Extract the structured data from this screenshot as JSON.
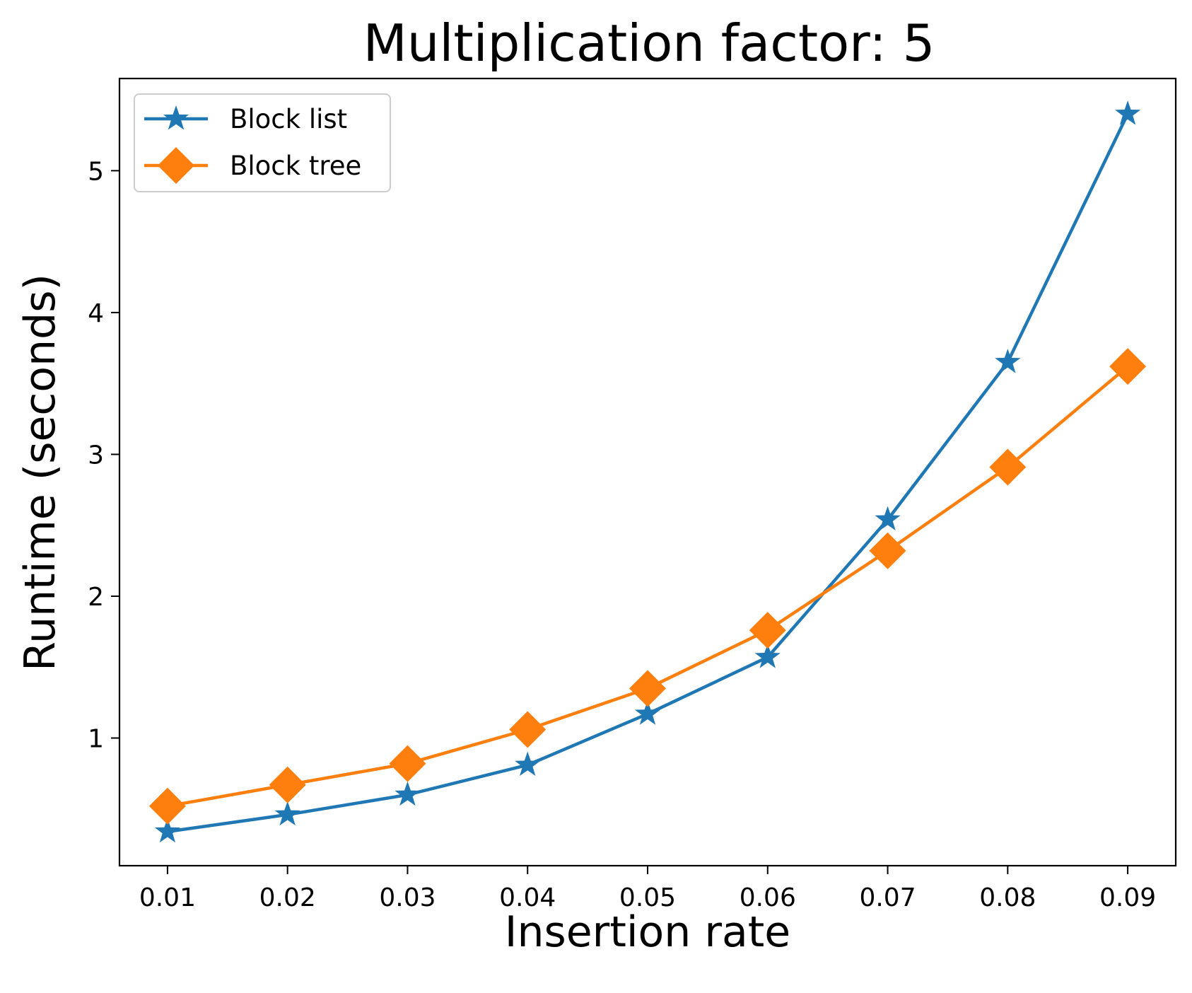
{
  "chart_data": {
    "type": "line",
    "title": "Multiplication factor: 5",
    "xlabel": "Insertion rate",
    "ylabel": "Runtime (seconds)",
    "x": [
      0.01,
      0.02,
      0.03,
      0.04,
      0.05,
      0.06,
      0.07,
      0.08,
      0.09
    ],
    "x_tick_labels": [
      "0.01",
      "0.02",
      "0.03",
      "0.04",
      "0.05",
      "0.06",
      "0.07",
      "0.08",
      "0.09"
    ],
    "y_ticks": [
      1,
      2,
      3,
      4,
      5
    ],
    "y_tick_labels": [
      "1",
      "2",
      "3",
      "4",
      "5"
    ],
    "xlim": [
      0.006,
      0.094
    ],
    "ylim": [
      0.1,
      5.65
    ],
    "grid": false,
    "legend_position": "top-left",
    "series": [
      {
        "name": "Block list",
        "color": "#1f77b4",
        "marker": "star",
        "values": [
          0.34,
          0.46,
          0.6,
          0.81,
          1.17,
          1.57,
          2.54,
          3.65,
          5.4
        ]
      },
      {
        "name": "Block tree",
        "color": "#ff7f0e",
        "marker": "diamond",
        "values": [
          0.52,
          0.67,
          0.82,
          1.06,
          1.35,
          1.76,
          2.32,
          2.91,
          3.62
        ]
      }
    ]
  }
}
